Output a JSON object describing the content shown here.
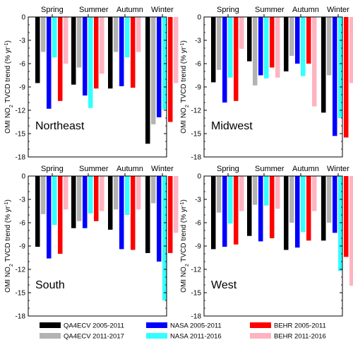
{
  "ylabel_parts": [
    "OMI NO",
    "2",
    " TVCD trend (% yr",
    "-1",
    ")"
  ],
  "colors": {
    "QA4ECV 2005-2011": "#000000",
    "QA4ECV 2011-2017": "#b3b3b3",
    "NASA 2005-2011": "#0000ff",
    "NASA 2011-2016": "#33ffff",
    "BEHR 2005-2011": "#ff0000",
    "BEHR 2011-2016": "#ffb3c1"
  },
  "legend": {
    "items": [
      "QA4ECV 2005-2011",
      "QA4ECV 2011-2017",
      "NASA 2005-2011",
      "NASA 2011-2016",
      "BEHR 2005-2011",
      "BEHR 2011-2016"
    ]
  },
  "chart_data": [
    {
      "type": "bar",
      "region": "Northeast",
      "categories": [
        "Spring",
        "Summer",
        "Autumn",
        "Winter"
      ],
      "ylim": [
        -18,
        0
      ],
      "yticks": [
        0,
        -3,
        -6,
        -9,
        -12,
        -15,
        -18
      ],
      "series": [
        {
          "name": "QA4ECV 2005-2011",
          "values": [
            -8.5,
            -8.7,
            -9.2,
            -16.3
          ]
        },
        {
          "name": "QA4ECV 2011-2017",
          "values": [
            -4.5,
            -6.5,
            -4.5,
            -13.8
          ]
        },
        {
          "name": "NASA 2005-2011",
          "values": [
            -11.8,
            -10.1,
            -8.9,
            -12.9
          ]
        },
        {
          "name": "NASA 2011-2016",
          "values": [
            -5.2,
            -11.7,
            -5.2,
            -11.9
          ]
        },
        {
          "name": "BEHR 2005-2011",
          "values": [
            -10.8,
            -9.2,
            -9.1,
            -13.5
          ]
        },
        {
          "name": "BEHR 2011-2016",
          "values": [
            -6.0,
            -7.3,
            -4.5,
            -8.5
          ]
        }
      ]
    },
    {
      "type": "bar",
      "region": "Midwest",
      "categories": [
        "Spring",
        "Summer",
        "Autumn",
        "Winter"
      ],
      "ylim": [
        -18,
        0
      ],
      "yticks": [
        0,
        -3,
        -6,
        -9,
        -12,
        -15,
        -18
      ],
      "series": [
        {
          "name": "QA4ECV 2005-2011",
          "values": [
            -8.4,
            -5.7,
            -7.0,
            -12.3
          ]
        },
        {
          "name": "QA4ECV 2011-2017",
          "values": [
            -6.8,
            -8.8,
            -5.0,
            -7.5
          ]
        },
        {
          "name": "NASA 2005-2011",
          "values": [
            -11.0,
            -7.5,
            -6.0,
            -15.3
          ]
        },
        {
          "name": "NASA 2011-2016",
          "values": [
            -7.8,
            -7.9,
            -7.6,
            -13.0
          ]
        },
        {
          "name": "BEHR 2005-2011",
          "values": [
            -10.8,
            -6.5,
            -6.0,
            -15.5
          ]
        },
        {
          "name": "BEHR 2011-2016",
          "values": [
            -4.1,
            -7.8,
            -11.5,
            -8.5
          ]
        }
      ]
    },
    {
      "type": "bar",
      "region": "South",
      "categories": [
        "Spring",
        "Summer",
        "Autumn",
        "Winter"
      ],
      "ylim": [
        -18,
        0
      ],
      "yticks": [
        0,
        -3,
        -6,
        -9,
        -12,
        -15,
        -18
      ],
      "series": [
        {
          "name": "QA4ECV 2005-2011",
          "values": [
            -9.1,
            -6.7,
            -6.9,
            -9.9
          ]
        },
        {
          "name": "QA4ECV 2011-2017",
          "values": [
            -4.9,
            -5.8,
            -4.3,
            -3.5
          ]
        },
        {
          "name": "NASA 2005-2011",
          "values": [
            -10.6,
            -6.7,
            -9.4,
            -11.0
          ]
        },
        {
          "name": "NASA 2011-2016",
          "values": [
            -6.3,
            -4.8,
            -5.0,
            -16.0
          ]
        },
        {
          "name": "BEHR 2005-2011",
          "values": [
            -10.0,
            -5.8,
            -9.5,
            -9.9
          ]
        },
        {
          "name": "BEHR 2011-2016",
          "values": [
            -4.3,
            -4.5,
            -4.3,
            -7.3
          ]
        }
      ]
    },
    {
      "type": "bar",
      "region": "West",
      "categories": [
        "Spring",
        "Summer",
        "Autumn",
        "Winter"
      ],
      "ylim": [
        -18,
        0
      ],
      "yticks": [
        0,
        -3,
        -6,
        -9,
        -12,
        -15,
        -18
      ],
      "series": [
        {
          "name": "QA4ECV 2005-2011",
          "values": [
            -9.4,
            -7.7,
            -9.5,
            -8.3
          ]
        },
        {
          "name": "QA4ECV 2011-2017",
          "values": [
            -4.7,
            -3.7,
            -6.0,
            -6.0
          ]
        },
        {
          "name": "NASA 2005-2011",
          "values": [
            -9.1,
            -8.4,
            -9.2,
            -7.3
          ]
        },
        {
          "name": "NASA 2011-2016",
          "values": [
            -6.1,
            -3.8,
            -7.2,
            -12.2
          ]
        },
        {
          "name": "BEHR 2005-2011",
          "values": [
            -8.8,
            -8.0,
            -8.3,
            -10.4
          ]
        },
        {
          "name": "BEHR 2011-2016",
          "values": [
            -4.5,
            -4.2,
            -4.5,
            -14.1
          ]
        }
      ]
    }
  ]
}
